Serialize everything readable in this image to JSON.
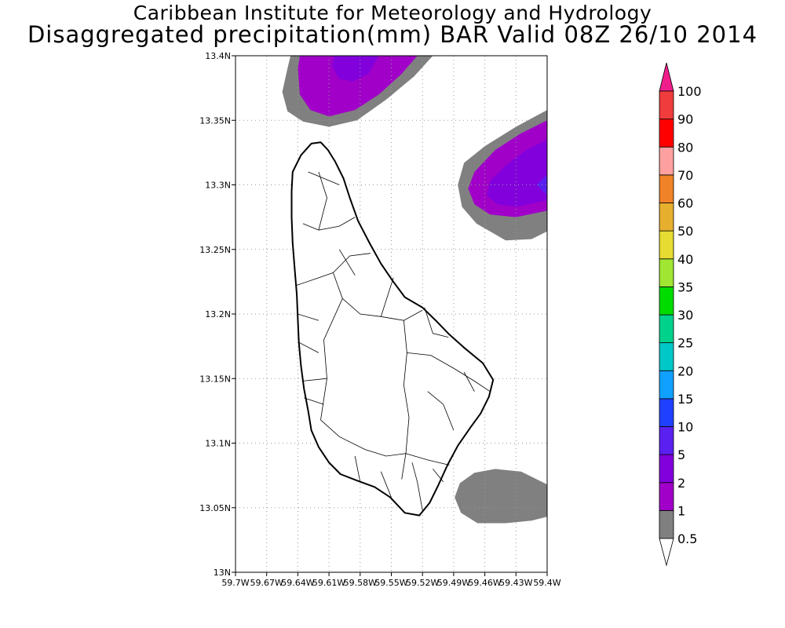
{
  "header": {
    "title_line1": "Caribbean Institute for Meteorology and Hydrology",
    "title_line2": "Disaggregated precipitation(mm) BAR Valid 08Z 26/10 2014"
  },
  "map": {
    "lon_range": [
      -59.7,
      -59.4
    ],
    "lat_range": [
      13.0,
      13.4
    ],
    "grid": "dotted",
    "lat_ticks": [
      {
        "value": 13.0,
        "label": "13N"
      },
      {
        "value": 13.05,
        "label": "13.05N"
      },
      {
        "value": 13.1,
        "label": "13.1N"
      },
      {
        "value": 13.15,
        "label": "13.15N"
      },
      {
        "value": 13.2,
        "label": "13.2N"
      },
      {
        "value": 13.25,
        "label": "13.25N"
      },
      {
        "value": 13.3,
        "label": "13.3N"
      },
      {
        "value": 13.35,
        "label": "13.35N"
      },
      {
        "value": 13.4,
        "label": "13.4N"
      }
    ],
    "lon_ticks": [
      {
        "value": -59.7,
        "label": "59.7W"
      },
      {
        "value": -59.67,
        "label": "59.67W"
      },
      {
        "value": -59.64,
        "label": "59.64W"
      },
      {
        "value": -59.61,
        "label": "59.61W"
      },
      {
        "value": -59.58,
        "label": "59.58W"
      },
      {
        "value": -59.55,
        "label": "59.55W"
      },
      {
        "value": -59.52,
        "label": "59.52W"
      },
      {
        "value": -59.49,
        "label": "59.49W"
      },
      {
        "value": -59.46,
        "label": "59.46W"
      },
      {
        "value": -59.43,
        "label": "59.43W"
      },
      {
        "value": -59.4,
        "label": "59.4W"
      }
    ],
    "island": "Barbados",
    "island_outline": [
      [
        -59.637,
        13.323
      ],
      [
        -59.627,
        13.332
      ],
      [
        -59.618,
        13.333
      ],
      [
        -59.611,
        13.327
      ],
      [
        -59.604,
        13.318
      ],
      [
        -59.596,
        13.305
      ],
      [
        -59.59,
        13.29
      ],
      [
        -59.582,
        13.272
      ],
      [
        -59.571,
        13.255
      ],
      [
        -59.56,
        13.239
      ],
      [
        -59.549,
        13.226
      ],
      [
        -59.537,
        13.213
      ],
      [
        -59.52,
        13.205
      ],
      [
        -59.506,
        13.194
      ],
      [
        -59.494,
        13.184
      ],
      [
        -59.48,
        13.174
      ],
      [
        -59.462,
        13.162
      ],
      [
        -59.452,
        13.149
      ],
      [
        -59.456,
        13.136
      ],
      [
        -59.464,
        13.123
      ],
      [
        -59.474,
        13.112
      ],
      [
        -59.486,
        13.098
      ],
      [
        -59.496,
        13.083
      ],
      [
        -59.505,
        13.067
      ],
      [
        -59.513,
        13.054
      ],
      [
        -59.523,
        13.044
      ],
      [
        -59.537,
        13.046
      ],
      [
        -59.551,
        13.058
      ],
      [
        -59.566,
        13.066
      ],
      [
        -59.583,
        13.071
      ],
      [
        -59.599,
        13.076
      ],
      [
        -59.61,
        13.085
      ],
      [
        -59.62,
        13.097
      ],
      [
        -59.627,
        13.11
      ],
      [
        -59.63,
        13.125
      ],
      [
        -59.634,
        13.142
      ],
      [
        -59.637,
        13.16
      ],
      [
        -59.639,
        13.178
      ],
      [
        -59.64,
        13.196
      ],
      [
        -59.641,
        13.215
      ],
      [
        -59.643,
        13.235
      ],
      [
        -59.645,
        13.255
      ],
      [
        -59.646,
        13.275
      ],
      [
        -59.646,
        13.295
      ],
      [
        -59.645,
        13.31
      ]
    ],
    "parish_lines": [
      [
        [
          -59.606,
          13.232
        ],
        [
          -59.59,
          13.245
        ],
        [
          -59.57,
          13.247
        ]
      ],
      [
        [
          -59.606,
          13.232
        ],
        [
          -59.62,
          13.228
        ],
        [
          -59.642,
          13.222
        ]
      ],
      [
        [
          -59.606,
          13.232
        ],
        [
          -59.597,
          13.212
        ],
        [
          -59.58,
          13.2
        ],
        [
          -59.56,
          13.198
        ]
      ],
      [
        [
          -59.56,
          13.198
        ],
        [
          -59.548,
          13.228
        ]
      ],
      [
        [
          -59.56,
          13.198
        ],
        [
          -59.538,
          13.195
        ],
        [
          -59.52,
          13.203
        ]
      ],
      [
        [
          -59.538,
          13.195
        ],
        [
          -59.535,
          13.17
        ],
        [
          -59.538,
          13.145
        ],
        [
          -59.533,
          13.12
        ],
        [
          -59.536,
          13.092
        ],
        [
          -59.54,
          13.072
        ]
      ],
      [
        [
          -59.597,
          13.212
        ],
        [
          -59.615,
          13.18
        ],
        [
          -59.612,
          13.15
        ],
        [
          -59.618,
          13.118
        ]
      ],
      [
        [
          -59.612,
          13.15
        ],
        [
          -59.636,
          13.148
        ]
      ],
      [
        [
          -59.618,
          13.118
        ],
        [
          -59.6,
          13.105
        ],
        [
          -59.575,
          13.095
        ],
        [
          -59.555,
          13.09
        ],
        [
          -59.536,
          13.092
        ]
      ],
      [
        [
          -59.536,
          13.092
        ],
        [
          -59.515,
          13.087
        ],
        [
          -59.494,
          13.083
        ]
      ],
      [
        [
          -59.535,
          13.17
        ],
        [
          -59.512,
          13.168
        ],
        [
          -59.49,
          13.158
        ],
        [
          -59.47,
          13.148
        ],
        [
          -59.455,
          13.14
        ]
      ],
      [
        [
          -59.518,
          13.205
        ],
        [
          -59.51,
          13.185
        ],
        [
          -59.495,
          13.182
        ]
      ],
      [
        [
          -59.62,
          13.265
        ],
        [
          -59.635,
          13.27
        ]
      ],
      [
        [
          -59.62,
          13.265
        ],
        [
          -59.612,
          13.29
        ],
        [
          -59.62,
          13.31
        ]
      ],
      [
        [
          -59.62,
          13.265
        ],
        [
          -59.6,
          13.268
        ],
        [
          -59.585,
          13.275
        ]
      ],
      [
        [
          -59.63,
          13.31
        ],
        [
          -59.615,
          13.305
        ],
        [
          -59.6,
          13.3
        ]
      ],
      [
        [
          -59.64,
          13.2
        ],
        [
          -59.62,
          13.195
        ]
      ],
      [
        [
          -59.639,
          13.178
        ],
        [
          -59.62,
          13.17
        ]
      ],
      [
        [
          -59.634,
          13.135
        ],
        [
          -59.615,
          13.13
        ]
      ],
      [
        [
          -59.58,
          13.07
        ],
        [
          -59.585,
          13.09
        ]
      ],
      [
        [
          -59.55,
          13.058
        ],
        [
          -59.56,
          13.078
        ]
      ],
      [
        [
          -59.52,
          13.048
        ],
        [
          -59.525,
          13.07
        ],
        [
          -59.53,
          13.085
        ]
      ],
      [
        [
          -59.5,
          13.07
        ],
        [
          -59.51,
          13.08
        ]
      ],
      [
        [
          -59.49,
          13.11
        ],
        [
          -59.5,
          13.13
        ],
        [
          -59.515,
          13.14
        ]
      ],
      [
        [
          -59.47,
          13.14
        ],
        [
          -59.48,
          13.155
        ]
      ],
      [
        [
          -59.6,
          13.25
        ],
        [
          -59.585,
          13.23
        ]
      ]
    ],
    "precip_areas": [
      {
        "level": "0.5",
        "polygon": [
          [
            -59.647,
            13.4
          ],
          [
            -59.65,
            13.39
          ],
          [
            -59.655,
            13.372
          ],
          [
            -59.65,
            13.357
          ],
          [
            -59.635,
            13.349
          ],
          [
            -59.61,
            13.345
          ],
          [
            -59.583,
            13.35
          ],
          [
            -59.555,
            13.366
          ],
          [
            -59.528,
            13.384
          ],
          [
            -59.51,
            13.4
          ]
        ]
      },
      {
        "level": "1",
        "polygon": [
          [
            -59.638,
            13.4
          ],
          [
            -59.64,
            13.39
          ],
          [
            -59.638,
            13.37
          ],
          [
            -59.628,
            13.358
          ],
          [
            -59.61,
            13.353
          ],
          [
            -59.585,
            13.358
          ],
          [
            -59.562,
            13.37
          ],
          [
            -59.54,
            13.386
          ],
          [
            -59.525,
            13.4
          ]
        ]
      },
      {
        "level": "2",
        "polygon": [
          [
            -59.605,
            13.4
          ],
          [
            -59.607,
            13.392
          ],
          [
            -59.6,
            13.382
          ],
          [
            -59.587,
            13.38
          ],
          [
            -59.572,
            13.386
          ],
          [
            -59.562,
            13.4
          ]
        ]
      },
      {
        "level": "0.5",
        "polygon": [
          [
            -59.4,
            13.358
          ],
          [
            -59.43,
            13.345
          ],
          [
            -59.46,
            13.33
          ],
          [
            -59.48,
            13.317
          ],
          [
            -59.486,
            13.3
          ],
          [
            -59.482,
            13.283
          ],
          [
            -59.468,
            13.27
          ],
          [
            -59.44,
            13.257
          ],
          [
            -59.415,
            13.258
          ],
          [
            -59.4,
            13.264
          ]
        ]
      },
      {
        "level": "1",
        "polygon": [
          [
            -59.4,
            13.35
          ],
          [
            -59.425,
            13.34
          ],
          [
            -59.45,
            13.327
          ],
          [
            -59.47,
            13.31
          ],
          [
            -59.476,
            13.297
          ],
          [
            -59.47,
            13.285
          ],
          [
            -59.455,
            13.277
          ],
          [
            -59.43,
            13.275
          ],
          [
            -59.4,
            13.28
          ]
        ]
      },
      {
        "level": "2",
        "polygon": [
          [
            -59.4,
            13.335
          ],
          [
            -59.42,
            13.327
          ],
          [
            -59.44,
            13.315
          ],
          [
            -59.455,
            13.303
          ],
          [
            -59.458,
            13.292
          ],
          [
            -59.448,
            13.285
          ],
          [
            -59.43,
            13.283
          ],
          [
            -59.4,
            13.288
          ]
        ]
      },
      {
        "level": "5",
        "polygon": [
          [
            -59.4,
            13.308
          ],
          [
            -59.41,
            13.3
          ],
          [
            -59.4,
            13.292
          ]
        ]
      },
      {
        "level": "0.5",
        "polygon": [
          [
            -59.4,
            13.068
          ],
          [
            -59.425,
            13.078
          ],
          [
            -59.45,
            13.08
          ],
          [
            -59.47,
            13.077
          ],
          [
            -59.484,
            13.069
          ],
          [
            -59.489,
            13.058
          ],
          [
            -59.483,
            13.046
          ],
          [
            -59.467,
            13.038
          ],
          [
            -59.44,
            13.038
          ],
          [
            -59.415,
            13.04
          ],
          [
            -59.4,
            13.043
          ]
        ]
      }
    ]
  },
  "colorbar": {
    "levels": [
      {
        "label": "0.5",
        "color": "#ffffff"
      },
      {
        "label": "1",
        "color": "#808080"
      },
      {
        "label": "2",
        "color": "#a000c8"
      },
      {
        "label": "5",
        "color": "#8200dc"
      },
      {
        "label": "10",
        "color": "#5a20f0"
      },
      {
        "label": "15",
        "color": "#2040ff"
      },
      {
        "label": "20",
        "color": "#10a0ff"
      },
      {
        "label": "25",
        "color": "#00c8c8"
      },
      {
        "label": "30",
        "color": "#00d28c"
      },
      {
        "label": "35",
        "color": "#00dc00"
      },
      {
        "label": "40",
        "color": "#a0e632"
      },
      {
        "label": "50",
        "color": "#e6dc32"
      },
      {
        "label": "60",
        "color": "#e6af2d"
      },
      {
        "label": "70",
        "color": "#f08228"
      },
      {
        "label": "80",
        "color": "#ffa0a0"
      },
      {
        "label": "90",
        "color": "#ff0000"
      },
      {
        "label": "100",
        "color": "#f03c3c"
      }
    ],
    "top_arrow_color": "#f01e8c",
    "bottom_arrow_color": "#ffffff"
  }
}
